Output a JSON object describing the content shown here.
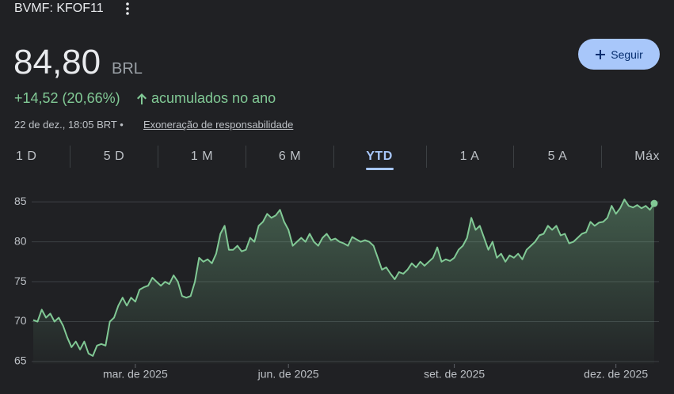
{
  "header": {
    "ticker": "BVMF: KFOF11",
    "price": "84,80",
    "currency": "BRL",
    "change": "+14,52 (20,66%)",
    "change_period": "acumulados no ano",
    "timestamp": "22 de dez., 18:05 BRT •",
    "disclaimer": "Exoneração de responsabilidade",
    "follow_button": "Seguir"
  },
  "tabs": [
    "1 D",
    "5 D",
    "1 M",
    "6 M",
    "YTD",
    "1 A",
    "5 A",
    "Máx"
  ],
  "selected_tab": 4,
  "chart_data": {
    "type": "line",
    "color": "#81c995",
    "grid": true,
    "values": [
      70.2,
      70,
      71.5,
      70.5,
      71,
      70,
      70.5,
      69.5,
      68,
      66.8,
      67.5,
      66.5,
      67.5,
      66,
      65.7,
      67,
      67.2,
      67,
      70,
      70.5,
      72,
      73,
      72,
      73,
      72.5,
      74,
      74.3,
      74.5,
      75.5,
      75,
      74.5,
      75,
      74.7,
      75.8,
      75,
      73.2,
      73,
      73.2,
      75,
      78,
      77.5,
      77.8,
      77.3,
      78.5,
      81,
      82,
      79,
      79,
      79.5,
      78.8,
      79,
      80.5,
      80,
      82,
      82.5,
      83.5,
      83,
      83.3,
      84,
      82.5,
      81.5,
      79.5,
      80,
      80.5,
      80,
      81,
      80,
      79.5,
      80.5,
      81,
      80.2,
      80.4,
      80,
      79.8,
      79.5,
      80.6,
      80.3,
      80,
      80.2,
      80,
      79.5,
      78,
      76.5,
      76.8,
      76,
      75.3,
      76.2,
      76,
      76.5,
      77.3,
      76.8,
      77.5,
      77,
      77.5,
      78,
      79.3,
      77.5,
      77.8,
      77.6,
      78,
      79,
      79.5,
      80.5,
      83,
      81.5,
      82,
      80.5,
      79,
      80,
      78,
      78.5,
      77.5,
      78.3,
      78,
      78.5,
      77.8,
      79,
      79.5,
      80,
      80.8,
      81,
      82,
      81.5,
      82,
      80.8,
      81,
      79.8,
      80,
      80.5,
      81,
      81.2,
      82.5,
      82,
      82.4,
      82.5,
      83,
      84.5,
      83.5,
      84.2,
      85.3,
      84.5,
      84.3,
      84.6,
      84.2,
      84.5,
      84,
      84.8
    ],
    "xlim": [
      0,
      146
    ],
    "xticks": [
      {
        "value": 24,
        "label": "mar. de 2025"
      },
      {
        "value": 60,
        "label": "jun. de 2025"
      },
      {
        "value": 99,
        "label": "set. de 2025"
      },
      {
        "value": 137,
        "label": "dez. de 2025"
      }
    ],
    "ylim": [
      64.7,
      86.5
    ],
    "yticks": [
      65,
      70,
      75,
      80,
      85
    ]
  }
}
